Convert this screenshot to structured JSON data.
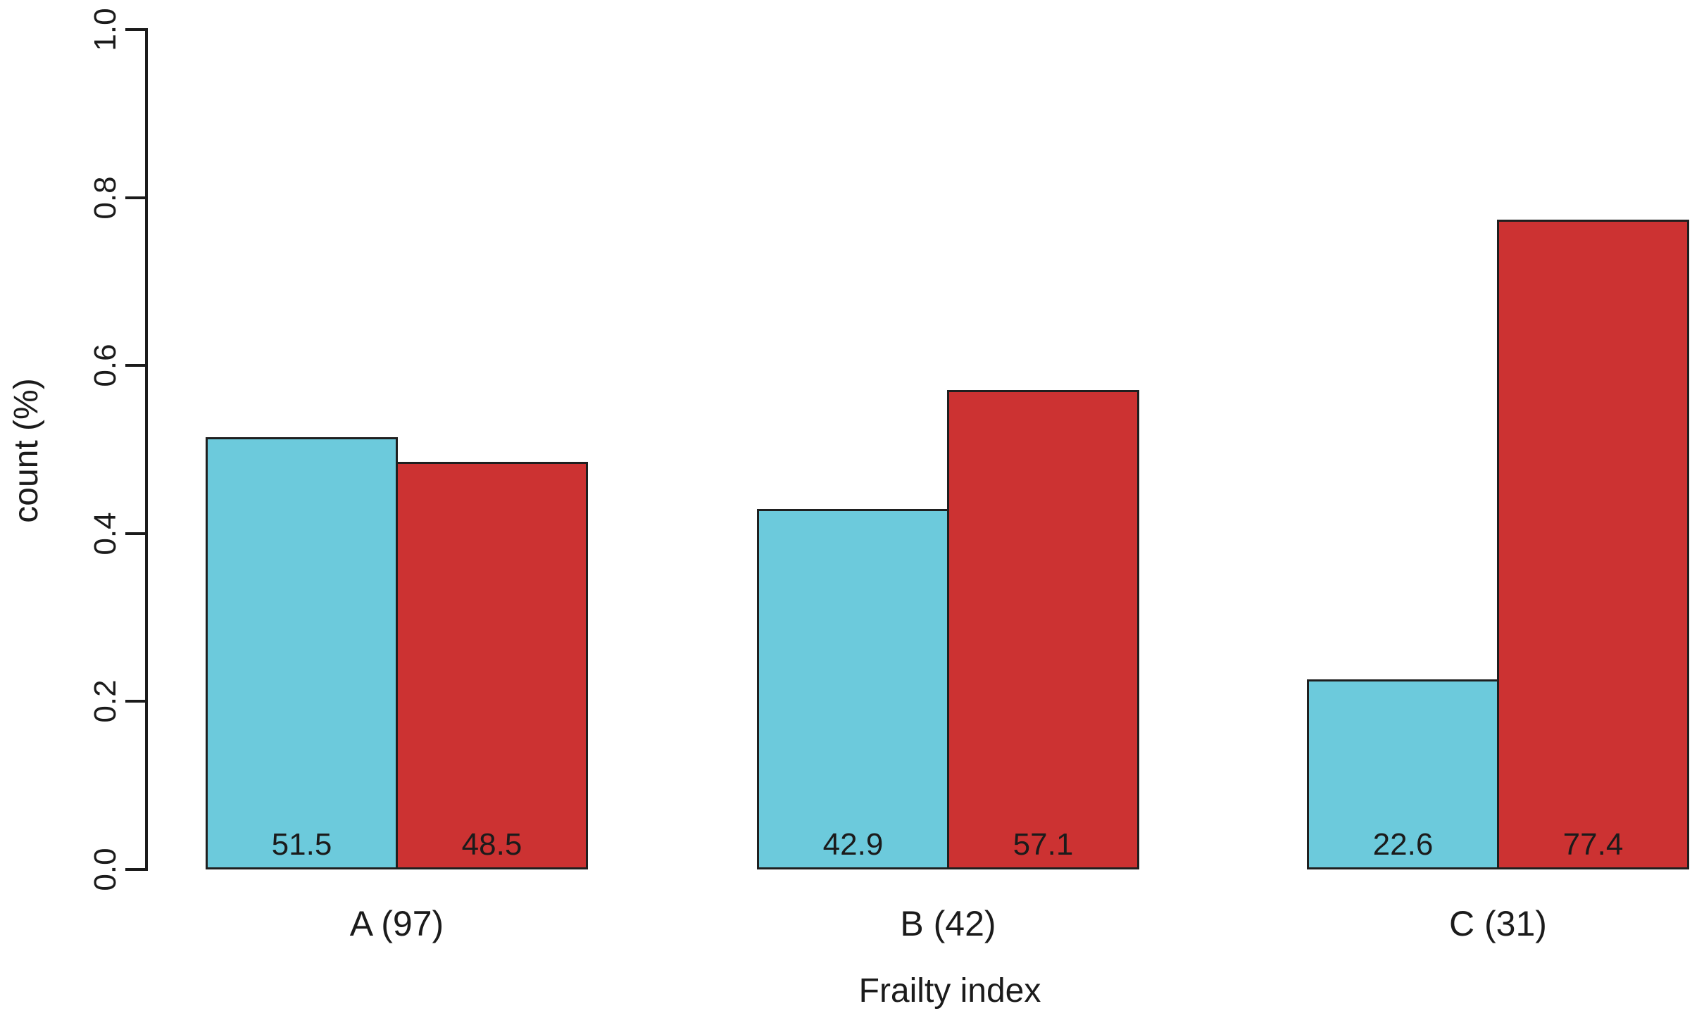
{
  "chart_data": {
    "type": "bar",
    "title": "",
    "xlabel": "Frailty index",
    "ylabel": "count (%)",
    "categories": [
      "A (97)",
      "B (42)",
      "C (31)"
    ],
    "series": [
      {
        "key": "cyan",
        "color": "#6CCADC",
        "values": [
          51.5,
          42.9,
          22.6
        ],
        "value_labels": [
          "51.5",
          "42.9",
          "22.6"
        ]
      },
      {
        "key": "red",
        "color": "#CC3232",
        "values": [
          48.5,
          57.1,
          77.4
        ],
        "value_labels": [
          "48.5",
          "57.1",
          "77.4"
        ]
      }
    ],
    "ylim": [
      0.0,
      1.0
    ],
    "ytick_labels": [
      "0.0",
      "0.2",
      "0.4",
      "0.6",
      "0.8",
      "1.0"
    ],
    "grid": false,
    "legend": "none",
    "bar_border_color": "#1F1F1F",
    "axis_color": "#1B1B1B",
    "background_color": "#FFFFFF"
  }
}
